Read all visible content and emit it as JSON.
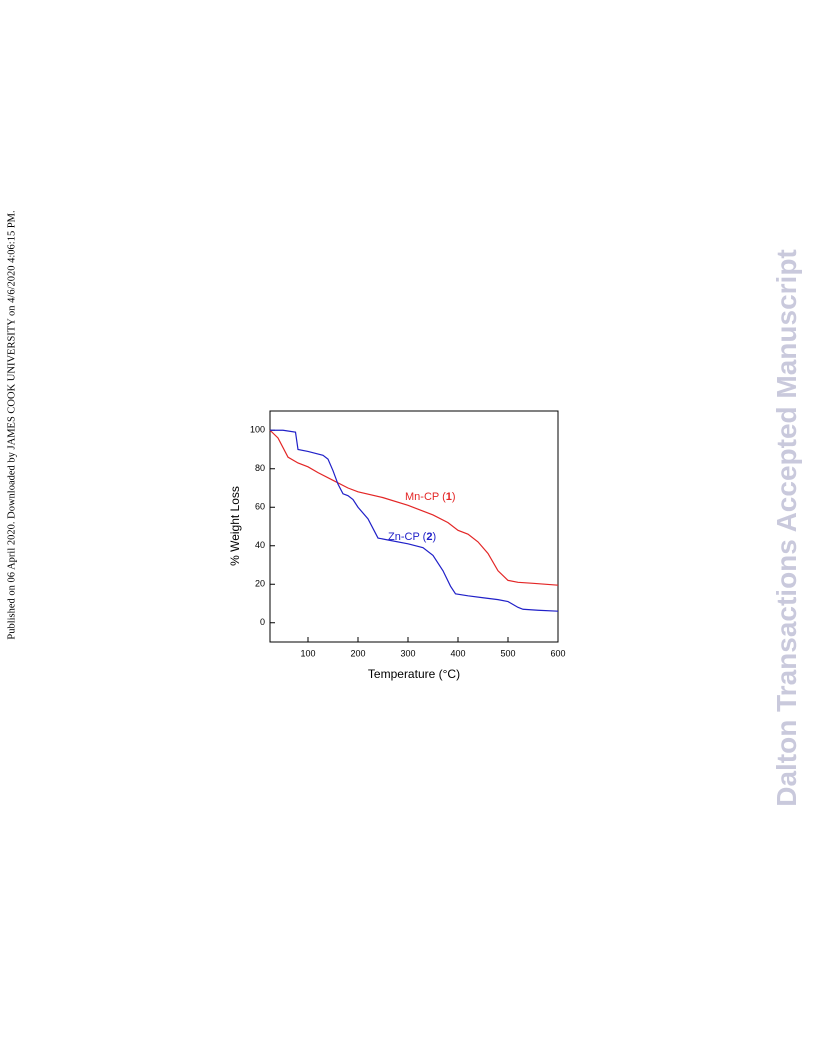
{
  "side_note": "Published on 06 April 2020. Downloaded by JAMES COOK UNIVERSITY on 4/6/2020 4:06:15 PM.",
  "watermark": "Dalton Transactions Accepted Manuscript",
  "chart_data": {
    "type": "line",
    "xlabel": "Temperature (°C)",
    "ylabel": "% Weight Loss",
    "xlim": [
      24,
      600
    ],
    "ylim": [
      -10,
      110
    ],
    "xticks": [
      100,
      200,
      300,
      400,
      500,
      600
    ],
    "yticks": [
      0,
      20,
      40,
      60,
      80,
      100
    ],
    "series": [
      {
        "label": [
          "Mn-CP (",
          "1",
          ")"
        ],
        "color": "#e32626",
        "x": [
          24,
          40,
          60,
          80,
          100,
          120,
          150,
          180,
          200,
          250,
          300,
          350,
          380,
          400,
          420,
          440,
          460,
          480,
          500,
          520,
          550,
          600
        ],
        "values": [
          100,
          96,
          86,
          83,
          81,
          78,
          74,
          70,
          68,
          65,
          61,
          56,
          52,
          48,
          46,
          42,
          36,
          27,
          22,
          21,
          20.5,
          19.5
        ]
      },
      {
        "label": [
          "Zn-CP (",
          "2",
          ")"
        ],
        "color": "#2020c8",
        "x": [
          24,
          50,
          75,
          80,
          100,
          130,
          140,
          150,
          160,
          170,
          180,
          190,
          200,
          220,
          240,
          260,
          300,
          330,
          350,
          370,
          385,
          395,
          420,
          450,
          480,
          500,
          520,
          530,
          560,
          600
        ],
        "values": [
          100,
          100,
          99,
          90,
          89,
          87,
          85,
          79,
          72,
          67,
          66,
          64,
          60,
          54,
          44,
          43,
          41,
          39,
          35,
          27,
          19,
          15,
          14,
          13,
          12,
          11,
          8,
          7,
          6.5,
          6
        ]
      }
    ]
  }
}
